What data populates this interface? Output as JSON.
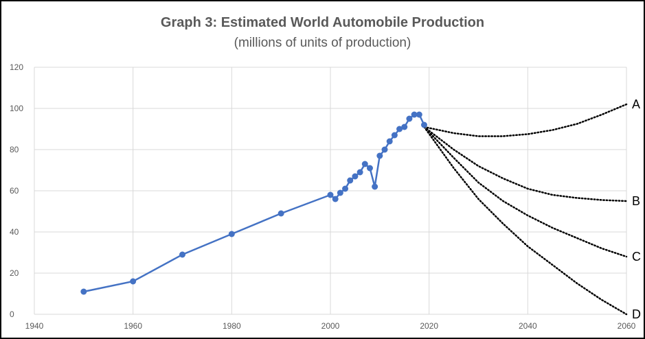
{
  "chart_data": {
    "type": "line",
    "title": "Graph 3: Estimated World Automobile Production",
    "subtitle": "(millions of units of production)",
    "xlabel": "",
    "ylabel": "",
    "xlim": [
      1940,
      2060
    ],
    "ylim": [
      0,
      120
    ],
    "x_ticks": [
      "1940",
      "1960",
      "1980",
      "2000",
      "2020",
      "2040",
      "2060"
    ],
    "y_ticks": [
      "0",
      "20",
      "40",
      "60",
      "80",
      "100",
      "120"
    ],
    "grid": true,
    "colors": {
      "series": "#4472C4",
      "projection": "#000000",
      "grid": "#d9d9d9",
      "text": "#595959"
    },
    "series": [
      {
        "style": "solid-with-markers",
        "x": [
          1950,
          1960,
          1970,
          1980,
          1990,
          2000,
          2001,
          2002,
          2003,
          2004,
          2005,
          2006,
          2007,
          2008,
          2009,
          2010,
          2011,
          2012,
          2013,
          2014,
          2015,
          2016,
          2017,
          2018,
          2019
        ],
        "y": [
          11,
          16,
          29,
          39,
          49,
          58,
          56,
          59,
          61,
          65,
          67,
          69,
          73,
          71,
          62,
          77,
          80,
          84,
          87,
          90,
          91,
          95,
          97,
          97,
          92
        ]
      }
    ],
    "projections": [
      {
        "label": "A",
        "style": "dotted",
        "x": [
          2019,
          2025,
          2030,
          2035,
          2040,
          2045,
          2050,
          2055,
          2060
        ],
        "y": [
          91,
          88,
          86.5,
          86.5,
          87.5,
          89.5,
          92.5,
          97,
          102
        ]
      },
      {
        "label": "B",
        "style": "dotted",
        "x": [
          2019,
          2025,
          2030,
          2035,
          2040,
          2045,
          2050,
          2055,
          2060
        ],
        "y": [
          91,
          80,
          72,
          66,
          61,
          58,
          56.5,
          55.5,
          55
        ]
      },
      {
        "label": "C",
        "style": "dotted",
        "x": [
          2019,
          2025,
          2030,
          2035,
          2040,
          2045,
          2050,
          2055,
          2060
        ],
        "y": [
          91,
          76,
          64,
          55,
          48,
          42,
          37,
          32,
          28
        ]
      },
      {
        "label": "D",
        "style": "dotted",
        "x": [
          2019,
          2025,
          2030,
          2035,
          2040,
          2045,
          2050,
          2055,
          2060
        ],
        "y": [
          91,
          71,
          56,
          44,
          33,
          24,
          15,
          7,
          0
        ]
      }
    ]
  }
}
